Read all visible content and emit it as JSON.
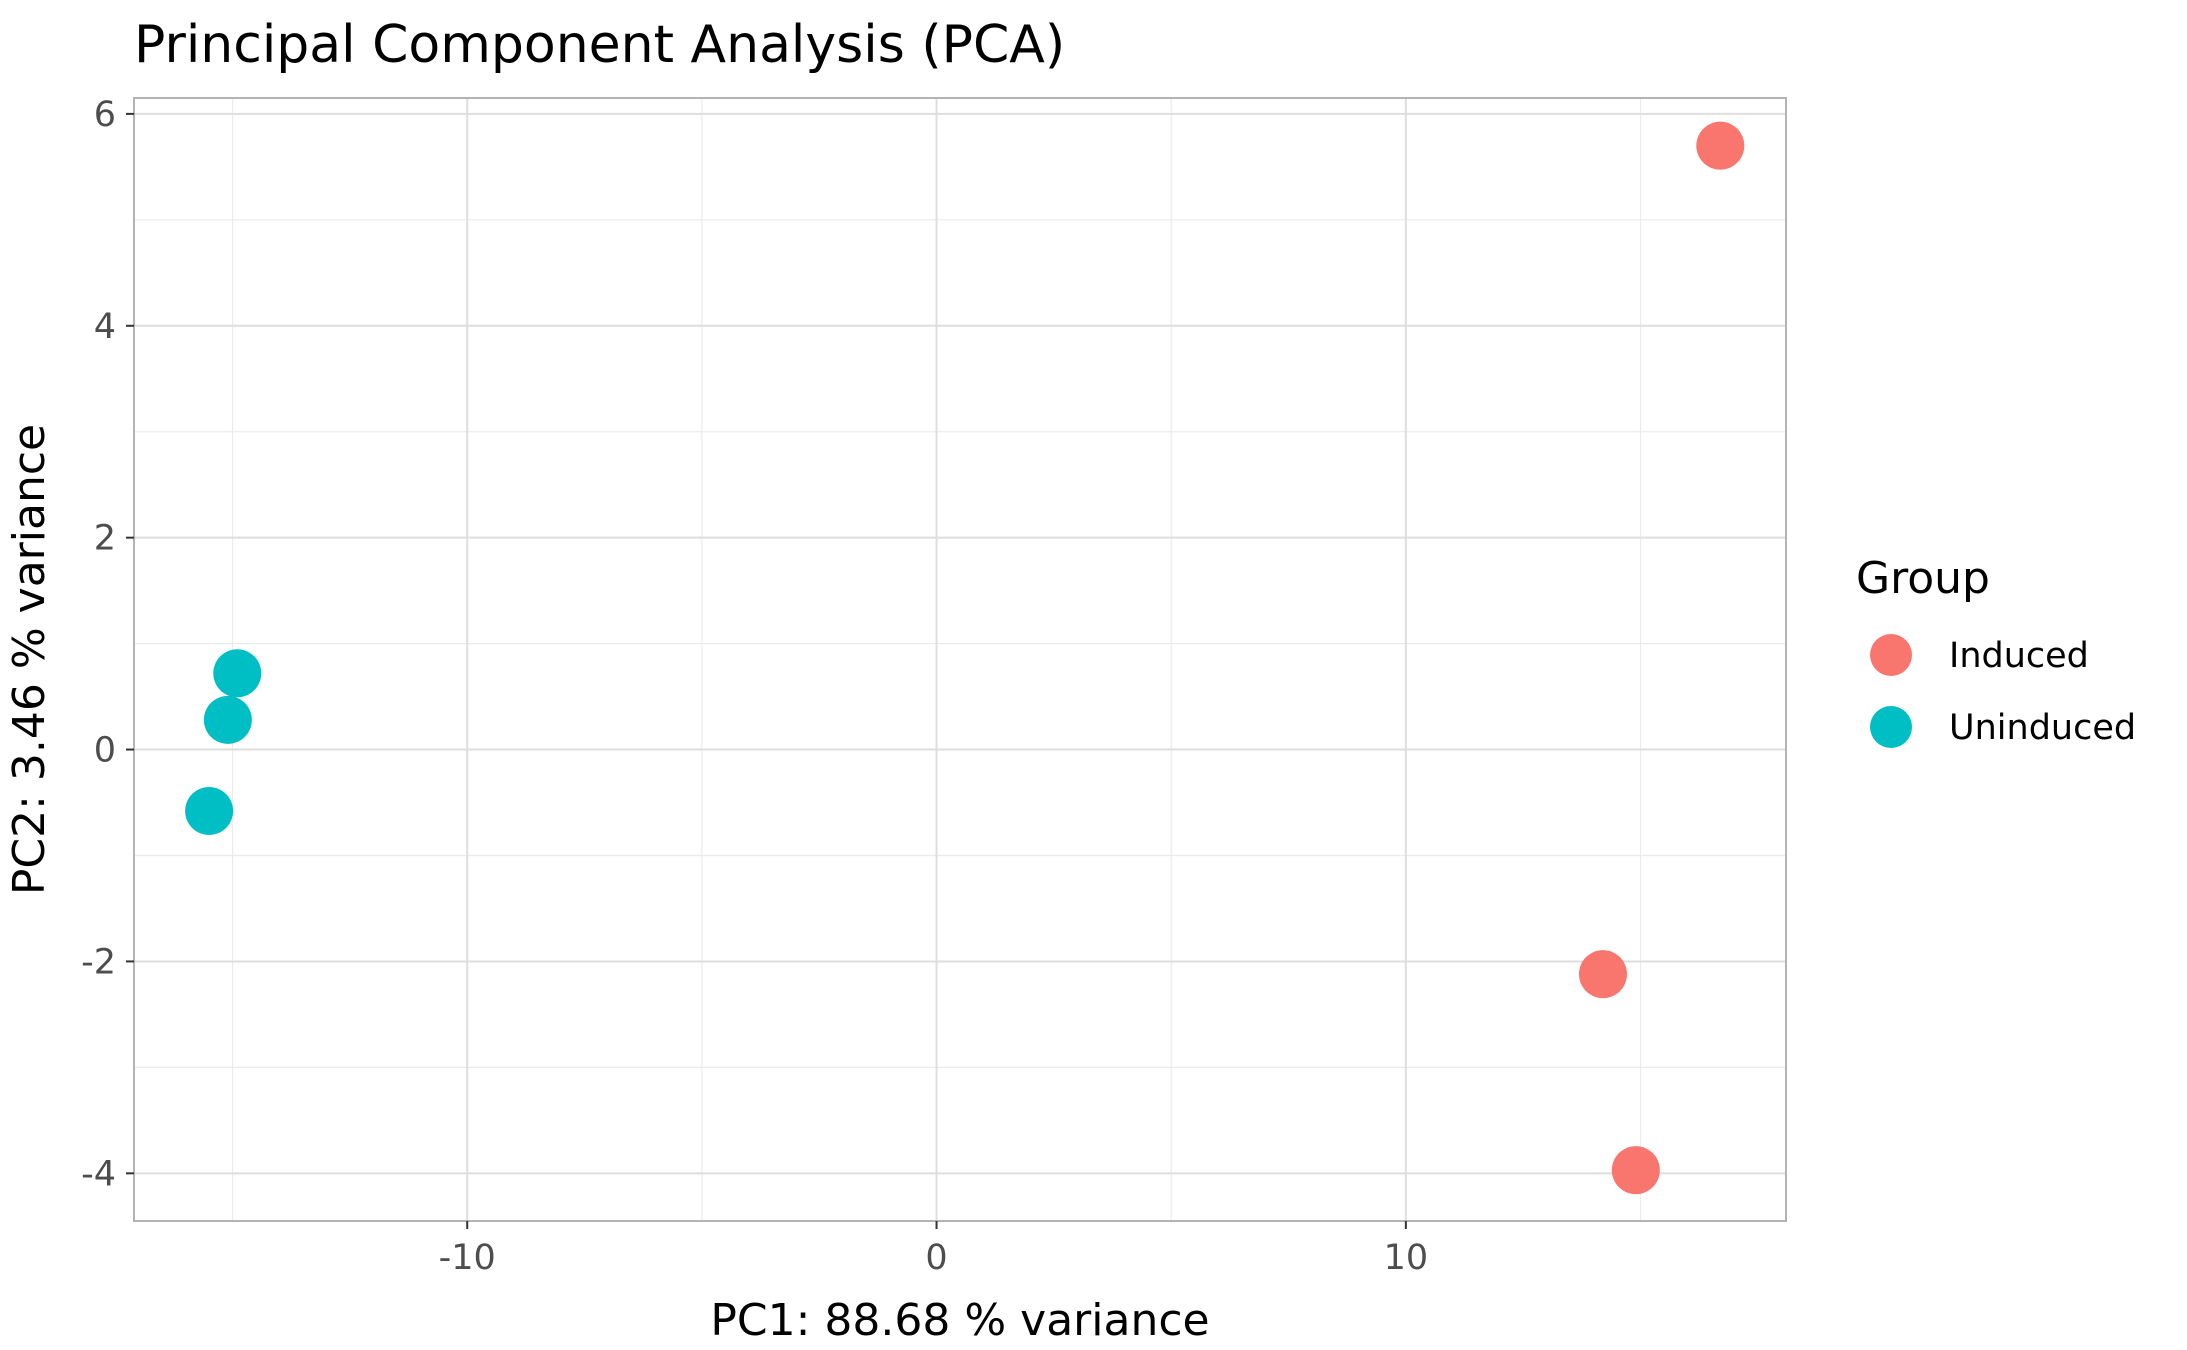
{
  "chart_data": {
    "type": "scatter",
    "title": "Principal Component Analysis (PCA)",
    "xlabel": "PC1:  88.68 % variance",
    "ylabel": "PC2:  3.46 % variance",
    "xlim": [
      -17.1,
      18.1
    ],
    "ylim": [
      -4.45,
      6.15
    ],
    "x_ticks": [
      -10,
      0,
      10
    ],
    "x_tick_labels": [
      "-10",
      "0",
      "10"
    ],
    "y_ticks": [
      -4,
      -2,
      0,
      2,
      4,
      6
    ],
    "y_tick_labels": [
      "-4",
      "-2",
      "0",
      "2",
      "4",
      "6"
    ],
    "x_minor_ticks": [
      -15,
      -5,
      5,
      15
    ],
    "y_minor_ticks": [
      -3,
      -1,
      1,
      3,
      5
    ],
    "grid": true,
    "legend": {
      "title": "Group",
      "position": "right"
    },
    "series": [
      {
        "name": "Induced",
        "color": "#F8766D",
        "x": [
          16.7,
          14.2,
          14.9
        ],
        "y": [
          5.7,
          -2.12,
          -3.97
        ]
      },
      {
        "name": "Uninduced",
        "color": "#00BFC4",
        "x": [
          -14.9,
          -15.1,
          -15.5
        ],
        "y": [
          0.72,
          0.28,
          -0.58
        ]
      }
    ]
  }
}
